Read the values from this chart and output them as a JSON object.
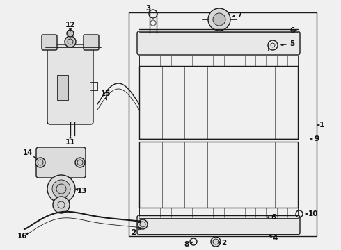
{
  "bg_color": "#f0f0f0",
  "line_color": "#1a1a1a",
  "label_color": "#111111",
  "fig_w": 4.9,
  "fig_h": 3.6,
  "dpi": 100
}
